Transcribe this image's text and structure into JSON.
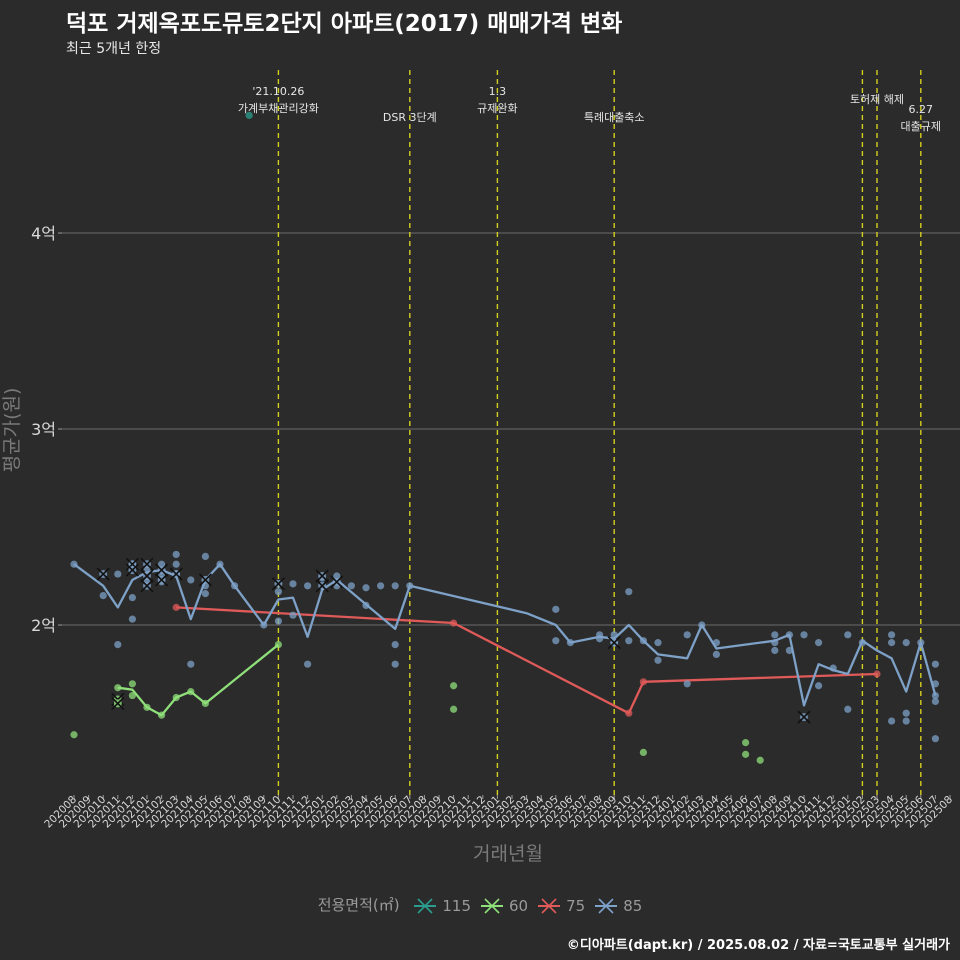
{
  "title": "덕포 거제옥포도뮤토2단지 아파트(2017) 매매가격 변화",
  "subtitle": "최근 5개년 한정",
  "caption": "©디아파트(dapt.kr) / 2025.08.02 / 자료=국토교통부 실거래가",
  "legend_title": "전용면적(㎡)",
  "chart_data": {
    "type": "line",
    "xlabel": "거래년월",
    "ylabel": "평균가(원)",
    "x_categories": [
      "202008",
      "202009",
      "202010",
      "202011",
      "202012",
      "202101",
      "202102",
      "202103",
      "202104",
      "202105",
      "202106",
      "202107",
      "202108",
      "202109",
      "202110",
      "202111",
      "202112",
      "202201",
      "202202",
      "202203",
      "202204",
      "202205",
      "202206",
      "202207",
      "202208",
      "202209",
      "202210",
      "202211",
      "202212",
      "202301",
      "202302",
      "202303",
      "202304",
      "202305",
      "202306",
      "202307",
      "202308",
      "202309",
      "202310",
      "202311",
      "202312",
      "202401",
      "202402",
      "202403",
      "202404",
      "202405",
      "202406",
      "202407",
      "202408",
      "202409",
      "202410",
      "202411",
      "202412",
      "202501",
      "202502",
      "202503",
      "202504",
      "202505",
      "202506",
      "202507",
      "202508"
    ],
    "y_ticks": [
      {
        "value": 2.0,
        "label": "2억"
      },
      {
        "value": 3.0,
        "label": "3억"
      },
      {
        "value": 4.0,
        "label": "4억"
      }
    ],
    "ylim": [
      1.14,
      4.85
    ],
    "series": [
      {
        "name": "115",
        "color": "#2a9d8f",
        "line": [],
        "points": [
          [
            12,
            4.6
          ]
        ],
        "cancelled": []
      },
      {
        "name": "60",
        "color": "#8fe07a",
        "line": [
          [
            3,
            1.68
          ],
          [
            4,
            1.67
          ],
          [
            5,
            1.58
          ],
          [
            6,
            1.54
          ],
          [
            7,
            1.63
          ],
          [
            8,
            1.66
          ],
          [
            9,
            1.6
          ],
          [
            14,
            1.9
          ]
        ],
        "points": [
          [
            0,
            1.44
          ],
          [
            3,
            1.68
          ],
          [
            4,
            1.7
          ],
          [
            4,
            1.64
          ],
          [
            5,
            1.58
          ],
          [
            6,
            1.54
          ],
          [
            7,
            1.63
          ],
          [
            8,
            1.66
          ],
          [
            9,
            1.6
          ],
          [
            14,
            1.9
          ],
          [
            26,
            1.69
          ],
          [
            26,
            1.57
          ],
          [
            39,
            1.35
          ],
          [
            46,
            1.4
          ],
          [
            46,
            1.34
          ],
          [
            47,
            1.31
          ]
        ],
        "cancelled": [
          [
            3,
            1.62
          ],
          [
            3,
            1.6
          ]
        ]
      },
      {
        "name": "75",
        "color": "#e05a5a",
        "line": [
          [
            7,
            2.09
          ],
          [
            26,
            2.01
          ],
          [
            38,
            1.55
          ],
          [
            39,
            1.71
          ],
          [
            55,
            1.75
          ]
        ],
        "points": [
          [
            7,
            2.09
          ],
          [
            26,
            2.01
          ],
          [
            38,
            1.55
          ],
          [
            39,
            1.71
          ],
          [
            55,
            1.75
          ]
        ],
        "cancelled": []
      },
      {
        "name": "85",
        "color": "#7ea1c8",
        "line": [
          [
            0,
            2.31
          ],
          [
            2,
            2.2
          ],
          [
            3,
            2.09
          ],
          [
            4,
            2.23
          ],
          [
            5,
            2.27
          ],
          [
            6,
            2.28
          ],
          [
            7,
            2.25
          ],
          [
            8,
            2.03
          ],
          [
            9,
            2.23
          ],
          [
            10,
            2.31
          ],
          [
            11,
            2.2
          ],
          [
            13,
            2.0
          ],
          [
            14,
            2.13
          ],
          [
            15,
            2.14
          ],
          [
            16,
            1.94
          ],
          [
            17,
            2.18
          ],
          [
            18,
            2.23
          ],
          [
            22,
            1.98
          ],
          [
            23,
            2.2
          ],
          [
            31,
            2.06
          ],
          [
            33,
            2.0
          ],
          [
            34,
            1.91
          ],
          [
            36,
            1.94
          ],
          [
            37,
            1.93
          ],
          [
            38,
            2.0
          ],
          [
            39,
            1.92
          ],
          [
            40,
            1.85
          ],
          [
            42,
            1.83
          ],
          [
            43,
            2.0
          ],
          [
            44,
            1.88
          ],
          [
            48,
            1.92
          ],
          [
            49,
            1.95
          ],
          [
            50,
            1.59
          ],
          [
            51,
            1.8
          ],
          [
            52,
            1.77
          ],
          [
            53,
            1.75
          ],
          [
            54,
            1.92
          ],
          [
            55,
            1.87
          ],
          [
            56,
            1.83
          ],
          [
            57,
            1.66
          ],
          [
            58,
            1.91
          ],
          [
            59,
            1.64
          ]
        ],
        "points": [
          [
            0,
            2.31
          ],
          [
            2,
            2.15
          ],
          [
            3,
            2.26
          ],
          [
            3,
            1.9
          ],
          [
            4,
            2.31
          ],
          [
            4,
            2.14
          ],
          [
            4,
            2.03
          ],
          [
            5,
            2.29
          ],
          [
            5,
            2.22
          ],
          [
            6,
            2.31
          ],
          [
            6,
            2.26
          ],
          [
            6,
            2.22
          ],
          [
            7,
            2.36
          ],
          [
            7,
            2.31
          ],
          [
            7,
            2.26
          ],
          [
            8,
            2.23
          ],
          [
            8,
            1.8
          ],
          [
            9,
            2.35
          ],
          [
            9,
            2.2
          ],
          [
            9,
            2.16
          ],
          [
            10,
            2.31
          ],
          [
            11,
            2.2
          ],
          [
            13,
            2.0
          ],
          [
            14,
            2.17
          ],
          [
            14,
            2.02
          ],
          [
            15,
            2.21
          ],
          [
            15,
            2.05
          ],
          [
            16,
            2.2
          ],
          [
            16,
            1.8
          ],
          [
            17,
            2.24
          ],
          [
            18,
            2.25
          ],
          [
            18,
            2.2
          ],
          [
            19,
            2.2
          ],
          [
            20,
            2.19
          ],
          [
            20,
            2.1
          ],
          [
            21,
            2.2
          ],
          [
            22,
            2.2
          ],
          [
            22,
            1.9
          ],
          [
            22,
            1.8
          ],
          [
            23,
            2.2
          ],
          [
            33,
            2.08
          ],
          [
            33,
            1.92
          ],
          [
            34,
            1.91
          ],
          [
            36,
            1.95
          ],
          [
            36,
            1.93
          ],
          [
            37,
            1.95
          ],
          [
            37,
            1.91
          ],
          [
            38,
            2.17
          ],
          [
            38,
            1.92
          ],
          [
            39,
            1.92
          ],
          [
            40,
            1.91
          ],
          [
            40,
            1.82
          ],
          [
            42,
            1.95
          ],
          [
            42,
            1.7
          ],
          [
            43,
            2.0
          ],
          [
            44,
            1.91
          ],
          [
            44,
            1.85
          ],
          [
            48,
            1.95
          ],
          [
            48,
            1.91
          ],
          [
            48,
            1.87
          ],
          [
            49,
            1.95
          ],
          [
            49,
            1.87
          ],
          [
            50,
            1.95
          ],
          [
            51,
            1.91
          ],
          [
            51,
            1.69
          ],
          [
            52,
            1.78
          ],
          [
            53,
            1.95
          ],
          [
            53,
            1.57
          ],
          [
            54,
            1.91
          ],
          [
            56,
            1.95
          ],
          [
            56,
            1.91
          ],
          [
            56,
            1.51
          ],
          [
            57,
            1.91
          ],
          [
            57,
            1.55
          ],
          [
            57,
            1.51
          ],
          [
            58,
            1.91
          ],
          [
            59,
            1.8
          ],
          [
            59,
            1.7
          ],
          [
            59,
            1.64
          ],
          [
            59,
            1.61
          ],
          [
            59,
            1.42
          ]
        ],
        "cancelled": [
          [
            2,
            2.26
          ],
          [
            4,
            2.31
          ],
          [
            4,
            2.28
          ],
          [
            5,
            2.31
          ],
          [
            5,
            2.25
          ],
          [
            5,
            2.2
          ],
          [
            6,
            2.28
          ],
          [
            6,
            2.23
          ],
          [
            7,
            2.26
          ],
          [
            9,
            2.23
          ],
          [
            14,
            2.21
          ],
          [
            17,
            2.25
          ],
          [
            17,
            2.2
          ],
          [
            18,
            2.22
          ],
          [
            37,
            1.91
          ],
          [
            50,
            1.53
          ]
        ]
      }
    ],
    "events": [
      {
        "x": 14,
        "label": "'21.10.26\n가계부채관리강화",
        "row": 0
      },
      {
        "x": 23,
        "label": "DSR 3단계",
        "row": 1
      },
      {
        "x": 29,
        "label": "1.3\n규제완화",
        "row": 0
      },
      {
        "x": 37,
        "label": "특례대출축소",
        "row": 1
      },
      {
        "x": 54,
        "label": "",
        "row": 0
      },
      {
        "x": 55,
        "label": "토허제 해제",
        "row": 0
      },
      {
        "x": 58,
        "label": "6.27\n대출규제",
        "row": 1
      }
    ]
  }
}
